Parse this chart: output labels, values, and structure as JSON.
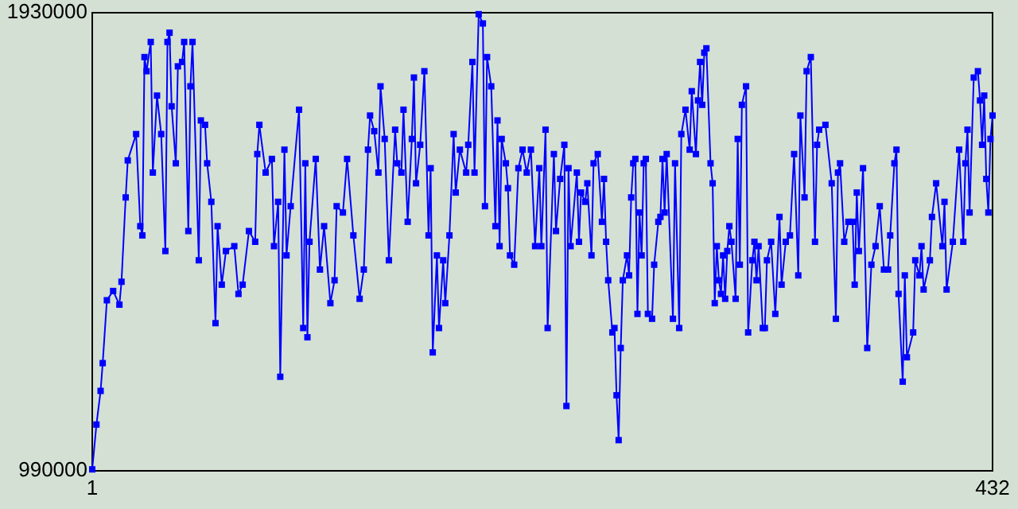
{
  "chart_data": {
    "type": "line",
    "marker": "square",
    "line_style": "solid",
    "grid": false,
    "xlim": [
      1,
      432
    ],
    "xticks": [
      1,
      432
    ],
    "ylim": [
      990000,
      1930000
    ],
    "yticks": [
      990000,
      1930000
    ],
    "series": [
      {
        "color": "#0000ff",
        "x": [
          1,
          3,
          5,
          6,
          8,
          11,
          14,
          15,
          17,
          18,
          22,
          24,
          25,
          26,
          27,
          29,
          30,
          32,
          34,
          36,
          37,
          38,
          39,
          41,
          42,
          44,
          45,
          47,
          48,
          49,
          52,
          53,
          55,
          56,
          58,
          60,
          61,
          63,
          65,
          69,
          71,
          73,
          76,
          79,
          80,
          81,
          84,
          87,
          88,
          90,
          91,
          93,
          94,
          96,
          100,
          102,
          103,
          104,
          105,
          108,
          110,
          112,
          115,
          117,
          118,
          121,
          123,
          126,
          129,
          131,
          133,
          134,
          136,
          138,
          139,
          141,
          143,
          146,
          147,
          149,
          150,
          152,
          154,
          155,
          156,
          158,
          160,
          162,
          163,
          164,
          166,
          167,
          169,
          170,
          172,
          174,
          175,
          177,
          180,
          181,
          183,
          184,
          186,
          188,
          189,
          190,
          192,
          194,
          195,
          196,
          197,
          199,
          200,
          201,
          203,
          205,
          207,
          209,
          211,
          213,
          215,
          216,
          218,
          219,
          222,
          223,
          225,
          227,
          228,
          229,
          230,
          233,
          234,
          235,
          237,
          238,
          240,
          241,
          243,
          245,
          246,
          247,
          248,
          250,
          251,
          252,
          253,
          254,
          255,
          257,
          258,
          259,
          260,
          261,
          262,
          263,
          264,
          265,
          266,
          267,
          269,
          270,
          272,
          273,
          274,
          275,
          276,
          279,
          280,
          282,
          283,
          285,
          287,
          288,
          290,
          291,
          292,
          293,
          294,
          295,
          297,
          298,
          299,
          300,
          301,
          302,
          303,
          304,
          305,
          306,
          307,
          309,
          310,
          311,
          312,
          314,
          315,
          317,
          318,
          319,
          320,
          322,
          323,
          324,
          326,
          328,
          330,
          331,
          333,
          335,
          337,
          339,
          340,
          342,
          343,
          345,
          347,
          348,
          349,
          352,
          355,
          357,
          358,
          359,
          361,
          363,
          365,
          366,
          367,
          368,
          370,
          372,
          374,
          376,
          378,
          380,
          382,
          383,
          385,
          386,
          387,
          389,
          390,
          391,
          394,
          395,
          397,
          398,
          399,
          402,
          403,
          405,
          408,
          409,
          410,
          413,
          416,
          418,
          419,
          420,
          421,
          423,
          425,
          426,
          427,
          428,
          429,
          430,
          431,
          432
        ],
        "values": [
          993000,
          1085000,
          1154000,
          1211000,
          1340000,
          1359000,
          1331000,
          1378000,
          1551000,
          1627000,
          1681000,
          1492000,
          1473000,
          1839000,
          1810000,
          1870000,
          1602000,
          1760000,
          1681000,
          1441000,
          1870000,
          1889000,
          1738000,
          1621000,
          1820000,
          1829000,
          1870000,
          1482000,
          1779000,
          1870000,
          1422000,
          1709000,
          1700000,
          1621000,
          1542000,
          1293000,
          1492000,
          1372000,
          1441000,
          1451000,
          1353000,
          1372000,
          1482000,
          1460000,
          1640000,
          1700000,
          1602000,
          1630000,
          1451000,
          1542000,
          1183000,
          1649000,
          1432000,
          1533000,
          1731000,
          1283000,
          1621000,
          1264000,
          1460000,
          1630000,
          1403000,
          1492000,
          1334000,
          1381000,
          1533000,
          1520000,
          1630000,
          1473000,
          1343000,
          1403000,
          1649000,
          1719000,
          1687000,
          1602000,
          1779000,
          1671000,
          1422000,
          1690000,
          1621000,
          1602000,
          1731000,
          1501000,
          1671000,
          1797000,
          1580000,
          1659000,
          1810000,
          1473000,
          1611000,
          1233000,
          1432000,
          1283000,
          1422000,
          1334000,
          1473000,
          1681000,
          1561000,
          1649000,
          1602000,
          1659000,
          1829000,
          1602000,
          1927000,
          1908000,
          1533000,
          1839000,
          1779000,
          1492000,
          1709000,
          1451000,
          1671000,
          1621000,
          1570000,
          1432000,
          1413000,
          1611000,
          1649000,
          1602000,
          1649000,
          1451000,
          1611000,
          1451000,
          1690000,
          1283000,
          1640000,
          1482000,
          1589000,
          1659000,
          1123000,
          1611000,
          1451000,
          1602000,
          1460000,
          1561000,
          1542000,
          1580000,
          1432000,
          1621000,
          1640000,
          1501000,
          1589000,
          1460000,
          1381000,
          1274000,
          1283000,
          1145000,
          1053000,
          1242000,
          1381000,
          1432000,
          1391000,
          1551000,
          1621000,
          1630000,
          1312000,
          1520000,
          1432000,
          1621000,
          1630000,
          1312000,
          1302000,
          1413000,
          1501000,
          1511000,
          1630000,
          1520000,
          1640000,
          1302000,
          1621000,
          1283000,
          1681000,
          1731000,
          1649000,
          1769000,
          1640000,
          1750000,
          1829000,
          1741000,
          1848000,
          1857000,
          1621000,
          1580000,
          1334000,
          1451000,
          1381000,
          1353000,
          1432000,
          1343000,
          1441000,
          1492000,
          1460000,
          1343000,
          1671000,
          1413000,
          1741000,
          1779000,
          1274000,
          1422000,
          1460000,
          1381000,
          1451000,
          1283000,
          1283000,
          1422000,
          1460000,
          1312000,
          1511000,
          1372000,
          1460000,
          1473000,
          1640000,
          1391000,
          1719000,
          1551000,
          1810000,
          1839000,
          1460000,
          1659000,
          1690000,
          1700000,
          1580000,
          1302000,
          1602000,
          1621000,
          1460000,
          1501000,
          1501000,
          1372000,
          1561000,
          1441000,
          1611000,
          1242000,
          1413000,
          1451000,
          1533000,
          1403000,
          1403000,
          1473000,
          1621000,
          1649000,
          1353000,
          1173000,
          1391000,
          1223000,
          1274000,
          1422000,
          1391000,
          1451000,
          1362000,
          1422000,
          1511000,
          1580000,
          1451000,
          1542000,
          1362000,
          1460000,
          1649000,
          1460000,
          1621000,
          1690000,
          1520000,
          1797000,
          1810000,
          1750000,
          1659000,
          1760000,
          1589000,
          1520000,
          1671000,
          1719000
        ]
      }
    ]
  }
}
